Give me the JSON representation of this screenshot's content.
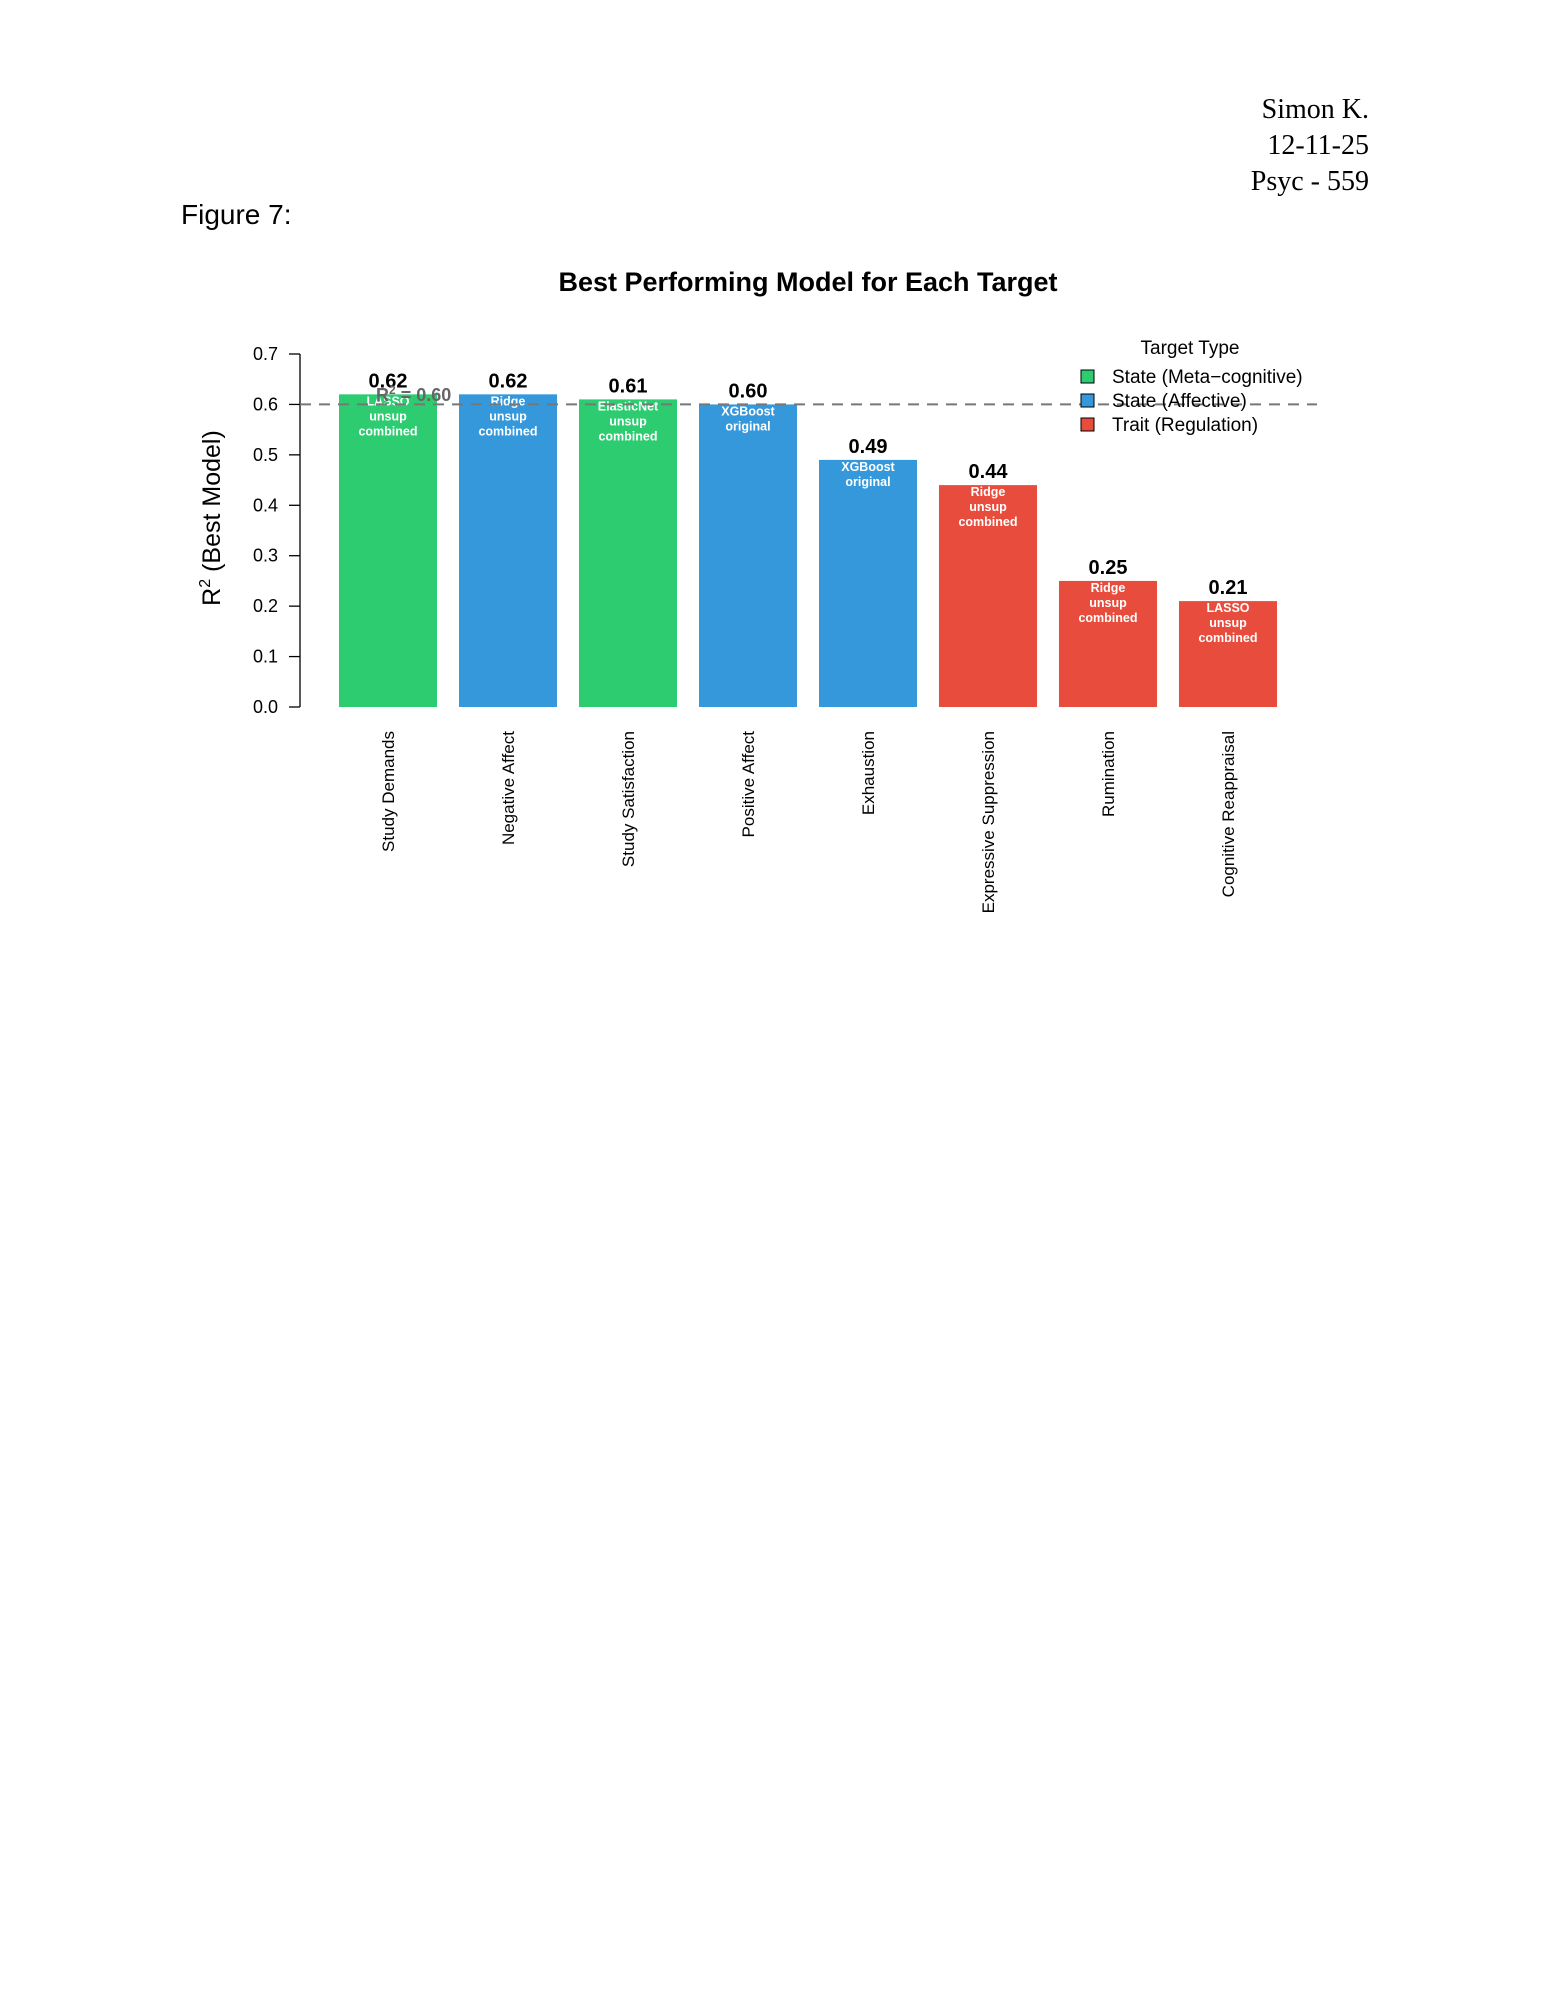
{
  "header": {
    "author": "Simon K.",
    "date": "12-11-25",
    "course": "Psyc - 559"
  },
  "figure_label": "Figure 7:",
  "chart_data": {
    "type": "bar",
    "title": "Best Performing Model for Each Target",
    "ylabel": "R² (Best Model)",
    "xlabel": "",
    "ylim": [
      0,
      0.7
    ],
    "yticks": [
      "0.0",
      "0.1",
      "0.2",
      "0.3",
      "0.4",
      "0.5",
      "0.6",
      "0.7"
    ],
    "categories": [
      "Study Demands",
      "Negative Affect",
      "Study Satisfaction",
      "Positive Affect",
      "Exhaustion",
      "Expressive Suppression",
      "Rumination",
      "Cognitive Reappraisal"
    ],
    "values": [
      0.62,
      0.62,
      0.61,
      0.6,
      0.49,
      0.44,
      0.25,
      0.21
    ],
    "value_labels": [
      "0.62",
      "0.62",
      "0.61",
      "0.60",
      "0.49",
      "0.44",
      "0.25",
      "0.21"
    ],
    "model_labels": [
      [
        "LASSO",
        "unsup",
        "combined"
      ],
      [
        "Ridge",
        "unsup",
        "combined"
      ],
      [
        "ElasticNet",
        "unsup",
        "combined"
      ],
      [
        "XGBoost",
        "original"
      ],
      [
        "XGBoost",
        "original"
      ],
      [
        "Ridge",
        "unsup",
        "combined"
      ],
      [
        "Ridge",
        "unsup",
        "combined"
      ],
      [
        "LASSO",
        "unsup",
        "combined"
      ]
    ],
    "groups": [
      "State (Meta-cognitive)",
      "State (Affective)",
      "State (Meta-cognitive)",
      "State (Affective)",
      "State (Affective)",
      "Trait (Regulation)",
      "Trait (Regulation)",
      "Trait (Regulation)"
    ],
    "reference_line": {
      "value": 0.6,
      "label": "R² = 0.60"
    },
    "grid": false,
    "legend": {
      "title": "Target Type",
      "placement": "top-right",
      "entries": [
        {
          "name": "State (Meta−cognitive)",
          "color": "#2ecc71"
        },
        {
          "name": "State (Affective)",
          "color": "#3498db"
        },
        {
          "name": "Trait (Regulation)",
          "color": "#e74c3c"
        }
      ]
    },
    "colors": {
      "State (Meta-cognitive)": "#2ecc71",
      "State (Affective)": "#3498db",
      "Trait (Regulation)": "#e74c3c"
    }
  }
}
